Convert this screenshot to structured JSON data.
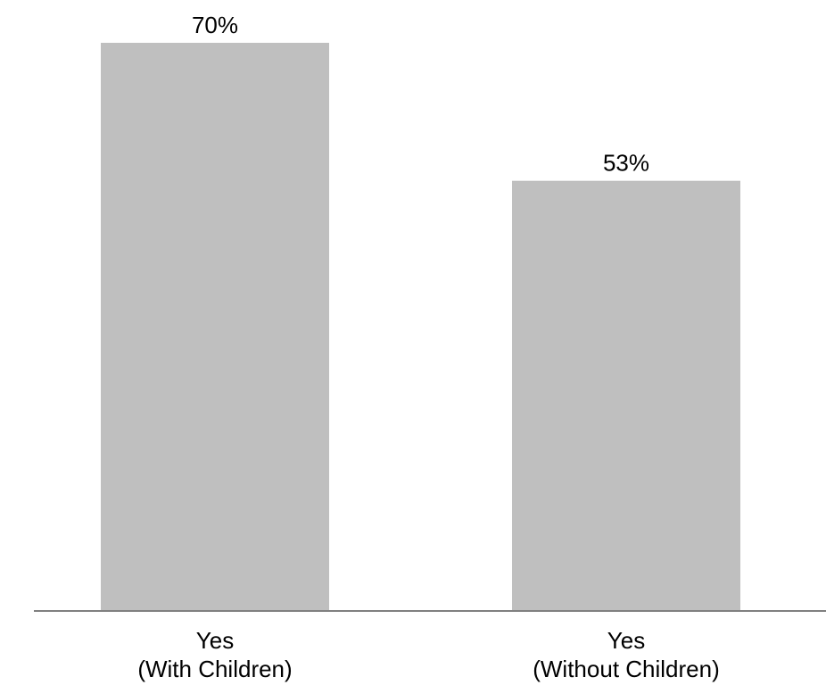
{
  "chart_data": {
    "type": "bar",
    "title": "",
    "xlabel": "",
    "ylabel": "",
    "categories": [
      [
        "Yes",
        "(With Children)"
      ],
      [
        "Yes",
        "(Without Children)"
      ]
    ],
    "values": [
      70,
      53
    ],
    "data_labels": [
      "70%",
      "53%"
    ],
    "ylim": [
      0,
      100
    ],
    "grid": false,
    "legend": "none",
    "bar_color": "#bfbfbf",
    "axis_color": "#808080"
  }
}
